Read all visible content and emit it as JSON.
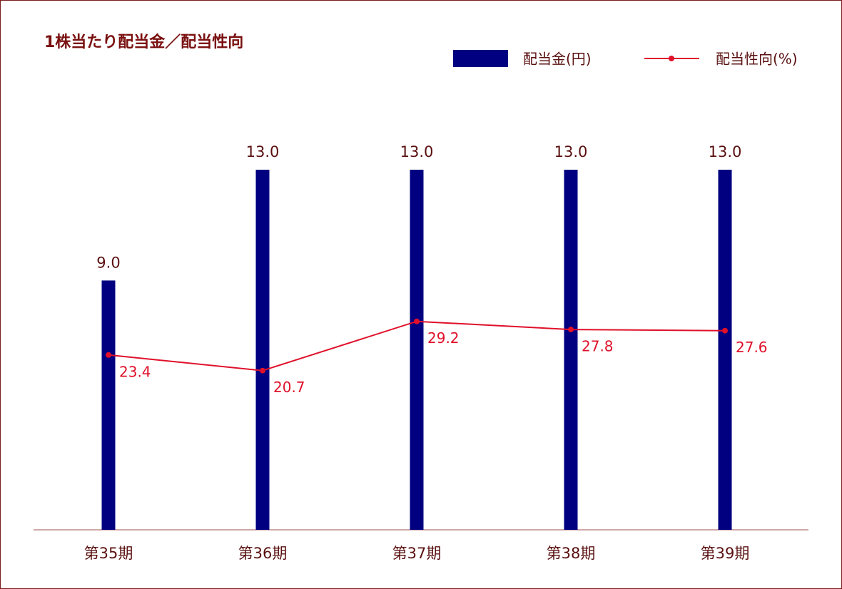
{
  "chart_data": {
    "type": "bar",
    "title": "1株当たり配当金／配当性向",
    "categories": [
      "第35期",
      "第36期",
      "第37期",
      "第38期",
      "第39期"
    ],
    "series": [
      {
        "name": "配当金(円)",
        "type": "bar",
        "color": "#000080",
        "values": [
          9,
          13,
          13,
          13,
          13
        ],
        "value_labels": [
          "9.0",
          "13.0",
          "13.0",
          "13.0",
          "13.0"
        ]
      },
      {
        "name": "配当性向(%)",
        "type": "line",
        "axis": "y2",
        "color": "#e0102a",
        "values": [
          23.4,
          20.7,
          29.2,
          27.8,
          27.6
        ]
      }
    ],
    "ylim": [
      0,
      13
    ],
    "y2lim": [
      -6.8,
      55.4
    ],
    "legend": "top-right"
  }
}
